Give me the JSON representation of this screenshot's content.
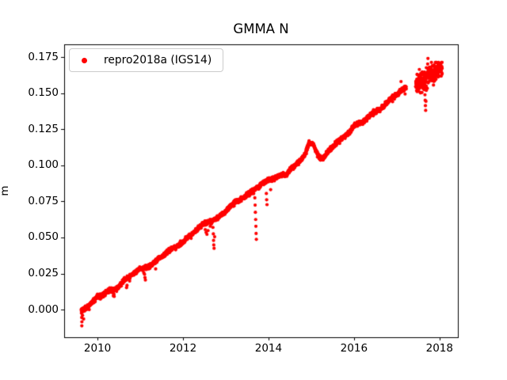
{
  "figure": {
    "background": "#ffffff",
    "frame_color": "#000000"
  },
  "chart_data": {
    "type": "scatter",
    "title": "GMMA N",
    "xlabel": "",
    "ylabel": "m",
    "grid": false,
    "legend": {
      "label": "repro2018a (IGS14)",
      "location": "upper left",
      "marker_color": "#ff0000",
      "edge_color": "#cccccc"
    },
    "x_ticks": [
      2010,
      2012,
      2014,
      2016,
      2018
    ],
    "x_tick_labels": [
      "2010",
      "2012",
      "2014",
      "2016",
      "2018"
    ],
    "y_ticks": [
      0.0,
      0.025,
      0.05,
      0.075,
      0.1,
      0.125,
      0.15,
      0.175
    ],
    "y_tick_labels": [
      "0.000",
      "0.025",
      "0.050",
      "0.075",
      "0.100",
      "0.125",
      "0.150",
      "0.175"
    ],
    "xlim": [
      2009.22,
      2018.43
    ],
    "ylim": [
      -0.0192,
      0.184
    ],
    "series": [
      {
        "name": "repro2018a (IGS14)",
        "color": "#ff0000",
        "marker": "circle",
        "description": "dense near-linear daily time series rising ~0.02 m/yr from 0.000 m in mid-2009 to ~0.168 m at 2018, with downward outlier spikes and a sparse cluster after a gap in 2017",
        "main_segment": {
          "t_start": 2009.62,
          "t_end": 2017.22,
          "points_per_year": 365
        },
        "trend_anchors": [
          [
            2009.62,
            0.0005
          ],
          [
            2009.72,
            0.0015
          ],
          [
            2009.85,
            0.004
          ],
          [
            2010.0,
            0.008
          ],
          [
            2010.25,
            0.0125
          ],
          [
            2010.5,
            0.0165
          ],
          [
            2010.62,
            0.02
          ],
          [
            2010.75,
            0.0225
          ],
          [
            2011.0,
            0.028
          ],
          [
            2011.25,
            0.0315
          ],
          [
            2011.5,
            0.0365
          ],
          [
            2011.75,
            0.042
          ],
          [
            2012.0,
            0.0475
          ],
          [
            2012.25,
            0.0535
          ],
          [
            2012.5,
            0.0595
          ],
          [
            2012.65,
            0.0615
          ],
          [
            2012.8,
            0.064
          ],
          [
            2013.0,
            0.0685
          ],
          [
            2013.25,
            0.0745
          ],
          [
            2013.5,
            0.08
          ],
          [
            2013.7,
            0.0845
          ],
          [
            2013.9,
            0.0875
          ],
          [
            2014.1,
            0.0905
          ],
          [
            2014.3,
            0.0935
          ],
          [
            2014.4,
            0.094
          ],
          [
            2014.5,
            0.0975
          ],
          [
            2014.7,
            0.1015
          ],
          [
            2014.85,
            0.107
          ],
          [
            2014.95,
            0.1155
          ],
          [
            2015.05,
            0.1145
          ],
          [
            2015.18,
            0.1065
          ],
          [
            2015.28,
            0.105
          ],
          [
            2015.4,
            0.1095
          ],
          [
            2015.6,
            0.1155
          ],
          [
            2015.8,
            0.1205
          ],
          [
            2016.0,
            0.128
          ],
          [
            2016.2,
            0.13
          ],
          [
            2016.4,
            0.1345
          ],
          [
            2016.6,
            0.139
          ],
          [
            2016.8,
            0.1445
          ],
          [
            2016.92,
            0.1485
          ],
          [
            2017.05,
            0.15
          ],
          [
            2017.22,
            0.1535
          ]
        ],
        "noise_sigma": 0.0007,
        "wiggle_amp": 0.0011,
        "end_cluster": {
          "t_start": 2017.44,
          "t_end": 2018.06,
          "base": 0.1565,
          "slope_per_year": 0.019,
          "sigma": 0.0035,
          "n_points": 230,
          "v_max": 0.1715
        },
        "outliers": [
          [
            2009.625,
            -0.0025
          ],
          [
            2009.63,
            -0.0055
          ],
          [
            2009.635,
            -0.0085
          ],
          [
            2009.633,
            -0.0113
          ],
          [
            2009.65,
            -0.004
          ],
          [
            2009.66,
            -0.0015
          ],
          [
            2009.675,
            -0.0065
          ],
          [
            2009.7,
            -0.001
          ],
          [
            2010.37,
            0.0095
          ],
          [
            2010.375,
            0.0112
          ],
          [
            2010.68,
            0.0152
          ],
          [
            2010.69,
            0.0168
          ],
          [
            2011.1,
            0.0245
          ],
          [
            2011.11,
            0.0222
          ],
          [
            2011.12,
            0.0205
          ],
          [
            2011.36,
            0.0282
          ],
          [
            2012.52,
            0.0555
          ],
          [
            2012.54,
            0.0535
          ],
          [
            2012.56,
            0.0522
          ],
          [
            2012.585,
            0.0548
          ],
          [
            2012.7,
            0.057
          ],
          [
            2012.71,
            0.0525
          ],
          [
            2012.715,
            0.048
          ],
          [
            2012.72,
            0.0448
          ],
          [
            2012.727,
            0.0425
          ],
          [
            2012.74,
            0.0505
          ],
          [
            2013.68,
            0.0775
          ],
          [
            2013.687,
            0.0725
          ],
          [
            2013.693,
            0.0675
          ],
          [
            2013.7,
            0.0625
          ],
          [
            2013.705,
            0.0578
          ],
          [
            2013.71,
            0.0528
          ],
          [
            2013.716,
            0.0487
          ],
          [
            2013.95,
            0.0805
          ],
          [
            2013.957,
            0.0762
          ],
          [
            2013.965,
            0.0728
          ],
          [
            2014.05,
            0.0832
          ],
          [
            2017.1,
            0.1582
          ],
          [
            2017.655,
            0.1535
          ],
          [
            2017.66,
            0.149
          ],
          [
            2017.665,
            0.1452
          ],
          [
            2017.67,
            0.1415
          ],
          [
            2017.676,
            0.1382
          ],
          [
            2017.683,
            0.1445
          ],
          [
            2017.69,
            0.152
          ],
          [
            2017.73,
            0.1742
          ],
          [
            2018.04,
            0.1655
          ],
          [
            2018.05,
            0.168
          ]
        ]
      }
    ]
  }
}
